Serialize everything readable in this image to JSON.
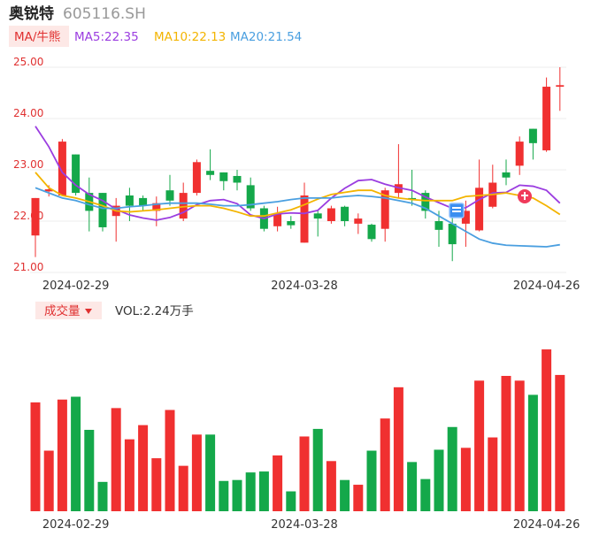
{
  "header": {
    "stock_name": "奥锐特",
    "stock_code": "605116.SH"
  },
  "ma_legend": {
    "tag_label": "MA/牛熊",
    "ma5_text": "MA5:22.35",
    "ma10_text": "MA10:22.13",
    "ma20_text": "MA20:21.54",
    "ma5_color": "#9b3de0",
    "ma10_color": "#f3b400",
    "ma20_color": "#4a9fe0"
  },
  "volume_legend": {
    "tag_label": "成交量",
    "vol_text": "VOL:2.24万手"
  },
  "colors": {
    "up": "#f03030",
    "down": "#14a84a",
    "grid": "#ececec",
    "axis_text": "#e03030",
    "date_text": "#333333"
  },
  "chart_data": [
    {
      "type": "candlestick",
      "y_ticks": [
        "25.00",
        "24.00",
        "23.00",
        "22.00",
        "21.00"
      ],
      "y_tick_values": [
        25,
        24,
        23,
        22,
        21
      ],
      "ylim": [
        21,
        25
      ],
      "x_tick_labels": [
        "2024-02-29",
        "2024-03-28",
        "2024-04-26"
      ],
      "x_tick_indices": [
        3,
        20,
        38
      ],
      "candles": [
        {
          "o": 21.72,
          "c": 22.45,
          "h": 22.45,
          "l": 21.3
        },
        {
          "o": 22.58,
          "c": 22.62,
          "h": 22.7,
          "l": 22.48
        },
        {
          "o": 22.5,
          "c": 23.55,
          "h": 23.6,
          "l": 22.5
        },
        {
          "o": 23.3,
          "c": 22.55,
          "h": 23.3,
          "l": 22.5
        },
        {
          "o": 22.55,
          "c": 22.2,
          "h": 22.85,
          "l": 21.8
        },
        {
          "o": 22.55,
          "c": 21.88,
          "h": 22.55,
          "l": 21.8
        },
        {
          "o": 22.1,
          "c": 22.3,
          "h": 22.45,
          "l": 21.6
        },
        {
          "o": 22.5,
          "c": 22.3,
          "h": 22.65,
          "l": 22.0
        },
        {
          "o": 22.45,
          "c": 22.3,
          "h": 22.5,
          "l": 22.2
        },
        {
          "o": 22.2,
          "c": 22.35,
          "h": 22.48,
          "l": 21.9
        },
        {
          "o": 22.6,
          "c": 22.4,
          "h": 22.9,
          "l": 22.3
        },
        {
          "o": 22.05,
          "c": 22.55,
          "h": 22.75,
          "l": 22.0
        },
        {
          "o": 22.55,
          "c": 23.15,
          "h": 23.2,
          "l": 22.5
        },
        {
          "o": 22.98,
          "c": 22.9,
          "h": 23.4,
          "l": 22.8
        },
        {
          "o": 22.95,
          "c": 22.78,
          "h": 22.95,
          "l": 22.6
        },
        {
          "o": 22.88,
          "c": 22.75,
          "h": 23.0,
          "l": 22.6
        },
        {
          "o": 22.7,
          "c": 22.25,
          "h": 22.85,
          "l": 22.2
        },
        {
          "o": 22.25,
          "c": 21.85,
          "h": 22.3,
          "l": 21.8
        },
        {
          "o": 21.9,
          "c": 22.15,
          "h": 22.28,
          "l": 21.8
        },
        {
          "o": 22.0,
          "c": 21.92,
          "h": 22.1,
          "l": 21.85
        },
        {
          "o": 21.58,
          "c": 22.5,
          "h": 22.75,
          "l": 21.58
        },
        {
          "o": 22.15,
          "c": 22.05,
          "h": 22.2,
          "l": 21.7
        },
        {
          "o": 22.0,
          "c": 22.25,
          "h": 22.3,
          "l": 21.95
        },
        {
          "o": 22.28,
          "c": 22.0,
          "h": 22.3,
          "l": 21.9
        },
        {
          "o": 21.95,
          "c": 22.05,
          "h": 22.15,
          "l": 21.75
        },
        {
          "o": 21.93,
          "c": 21.65,
          "h": 21.95,
          "l": 21.6
        },
        {
          "o": 21.85,
          "c": 22.6,
          "h": 22.65,
          "l": 21.6
        },
        {
          "o": 22.55,
          "c": 22.72,
          "h": 23.5,
          "l": 22.45
        },
        {
          "o": 22.45,
          "c": 22.42,
          "h": 23.0,
          "l": 22.3
        },
        {
          "o": 22.55,
          "c": 22.2,
          "h": 22.6,
          "l": 22.05
        },
        {
          "o": 22.0,
          "c": 21.83,
          "h": 22.2,
          "l": 21.5
        },
        {
          "o": 21.95,
          "c": 21.55,
          "h": 22.1,
          "l": 21.22
        },
        {
          "o": 21.95,
          "c": 22.2,
          "h": 22.4,
          "l": 21.5
        },
        {
          "o": 21.82,
          "c": 22.65,
          "h": 23.2,
          "l": 21.8
        },
        {
          "o": 22.28,
          "c": 22.75,
          "h": 23.1,
          "l": 22.25
        },
        {
          "o": 22.95,
          "c": 22.85,
          "h": 23.2,
          "l": 22.7
        },
        {
          "o": 23.08,
          "c": 23.55,
          "h": 23.65,
          "l": 22.9
        },
        {
          "o": 23.8,
          "c": 23.52,
          "h": 23.8,
          "l": 23.2
        },
        {
          "o": 23.38,
          "c": 24.62,
          "h": 24.8,
          "l": 23.35
        },
        {
          "o": 24.62,
          "c": 24.65,
          "h": 25.0,
          "l": 24.15
        }
      ],
      "ma5": [
        23.85,
        23.45,
        22.95,
        22.7,
        22.52,
        22.4,
        22.23,
        22.12,
        22.06,
        22.02,
        22.07,
        22.17,
        22.32,
        22.4,
        22.42,
        22.34,
        22.12,
        22.05,
        22.14,
        22.16,
        22.15,
        22.21,
        22.45,
        22.64,
        22.79,
        22.81,
        22.72,
        22.65,
        22.6,
        22.47,
        22.36,
        22.25,
        22.26,
        22.42,
        22.55,
        22.56,
        22.7,
        22.68,
        22.6,
        22.35
      ],
      "ma10": [
        22.95,
        22.65,
        22.5,
        22.45,
        22.38,
        22.3,
        22.2,
        22.18,
        22.2,
        22.22,
        22.25,
        22.28,
        22.3,
        22.3,
        22.25,
        22.18,
        22.1,
        22.1,
        22.16,
        22.22,
        22.32,
        22.43,
        22.52,
        22.56,
        22.6,
        22.6,
        22.5,
        22.45,
        22.42,
        22.4,
        22.4,
        22.4,
        22.48,
        22.5,
        22.52,
        22.55,
        22.5,
        22.45,
        22.3,
        22.13
      ],
      "ma20": [
        22.65,
        22.55,
        22.45,
        22.4,
        22.32,
        22.25,
        22.25,
        22.28,
        22.3,
        22.33,
        22.35,
        22.35,
        22.35,
        22.33,
        22.3,
        22.3,
        22.32,
        22.35,
        22.38,
        22.42,
        22.45,
        22.45,
        22.45,
        22.48,
        22.5,
        22.48,
        22.45,
        22.4,
        22.35,
        22.25,
        22.1,
        21.95,
        21.8,
        21.65,
        21.57,
        21.53,
        21.52,
        21.51,
        21.5,
        21.54
      ]
    },
    {
      "type": "bar",
      "volume_index": [
        0.575,
        0.32,
        0.59,
        0.605,
        0.43,
        0.155,
        0.545,
        0.38,
        0.455,
        0.28,
        0.535,
        0.24,
        0.405,
        0.405,
        0.16,
        0.165,
        0.205,
        0.21,
        0.295,
        0.105,
        0.395,
        0.435,
        0.265,
        0.165,
        0.14,
        0.32,
        0.49,
        0.655,
        0.26,
        0.17,
        0.325,
        0.445,
        0.335,
        0.69,
        0.39,
        0.715,
        0.69,
        0.615,
        0.855,
        0.72
      ],
      "volume_dir": [
        "up",
        "up",
        "up",
        "down",
        "down",
        "down",
        "up",
        "up",
        "up",
        "up",
        "up",
        "up",
        "up",
        "down",
        "down",
        "down",
        "down",
        "down",
        "up",
        "down",
        "up",
        "down",
        "up",
        "down",
        "up",
        "down",
        "up",
        "up",
        "down",
        "down",
        "down",
        "down",
        "up",
        "up",
        "up",
        "up",
        "up",
        "down",
        "up",
        "up"
      ],
      "x_tick_labels": [
        "2024-02-29",
        "2024-03-28",
        "2024-04-26"
      ],
      "x_tick_indices": [
        3,
        20,
        38
      ]
    }
  ]
}
